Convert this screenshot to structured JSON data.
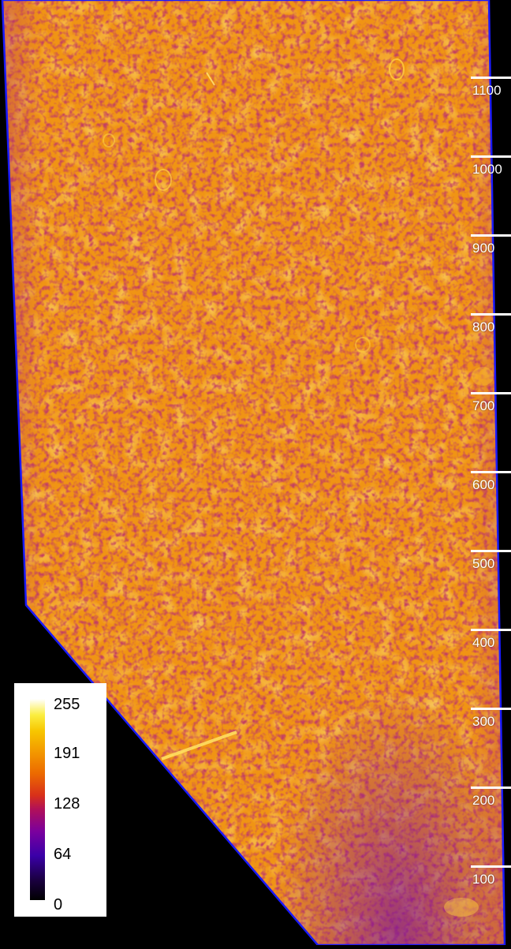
{
  "scale": {
    "ticks": [
      {
        "label": "1100"
      },
      {
        "label": "1000"
      },
      {
        "label": "900"
      },
      {
        "label": "800"
      },
      {
        "label": "700"
      },
      {
        "label": "600"
      },
      {
        "label": "500"
      },
      {
        "label": "400"
      },
      {
        "label": "300"
      },
      {
        "label": "200"
      },
      {
        "label": "100"
      }
    ]
  },
  "colorbar": {
    "values": [
      "255",
      "191",
      "128",
      "64",
      "0"
    ]
  },
  "colors": {
    "background": "#000000",
    "border": "#1a1aff",
    "dominant": "#f29a10"
  }
}
